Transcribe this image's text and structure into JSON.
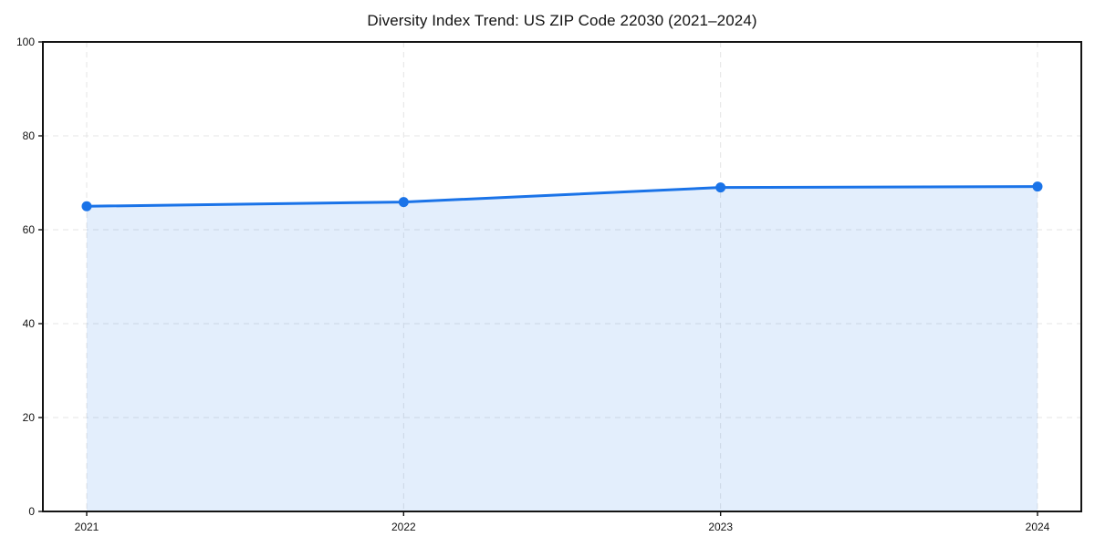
{
  "chart_data": {
    "type": "area",
    "title": "Diversity Index Trend: US ZIP Code 22030 (2021–2024)",
    "xlabel": "",
    "ylabel": "",
    "categories": [
      "2021",
      "2022",
      "2023",
      "2024"
    ],
    "series": [
      {
        "name": "Diversity Index",
        "values": [
          65.0,
          65.9,
          69.0,
          69.2
        ]
      }
    ],
    "ylim": [
      0,
      100
    ],
    "y_ticks": [
      0,
      20,
      40,
      60,
      80,
      100
    ],
    "grid": true,
    "grid_style": "dashed",
    "legend_position": "none",
    "colors": {
      "line": "#1a73e8",
      "marker": "#1a73e8",
      "grid": "#e4e4e4",
      "spine": "#141414",
      "tick_text": "#121212",
      "background": "#ffffff"
    },
    "area_fill_opacity": 0.12
  }
}
